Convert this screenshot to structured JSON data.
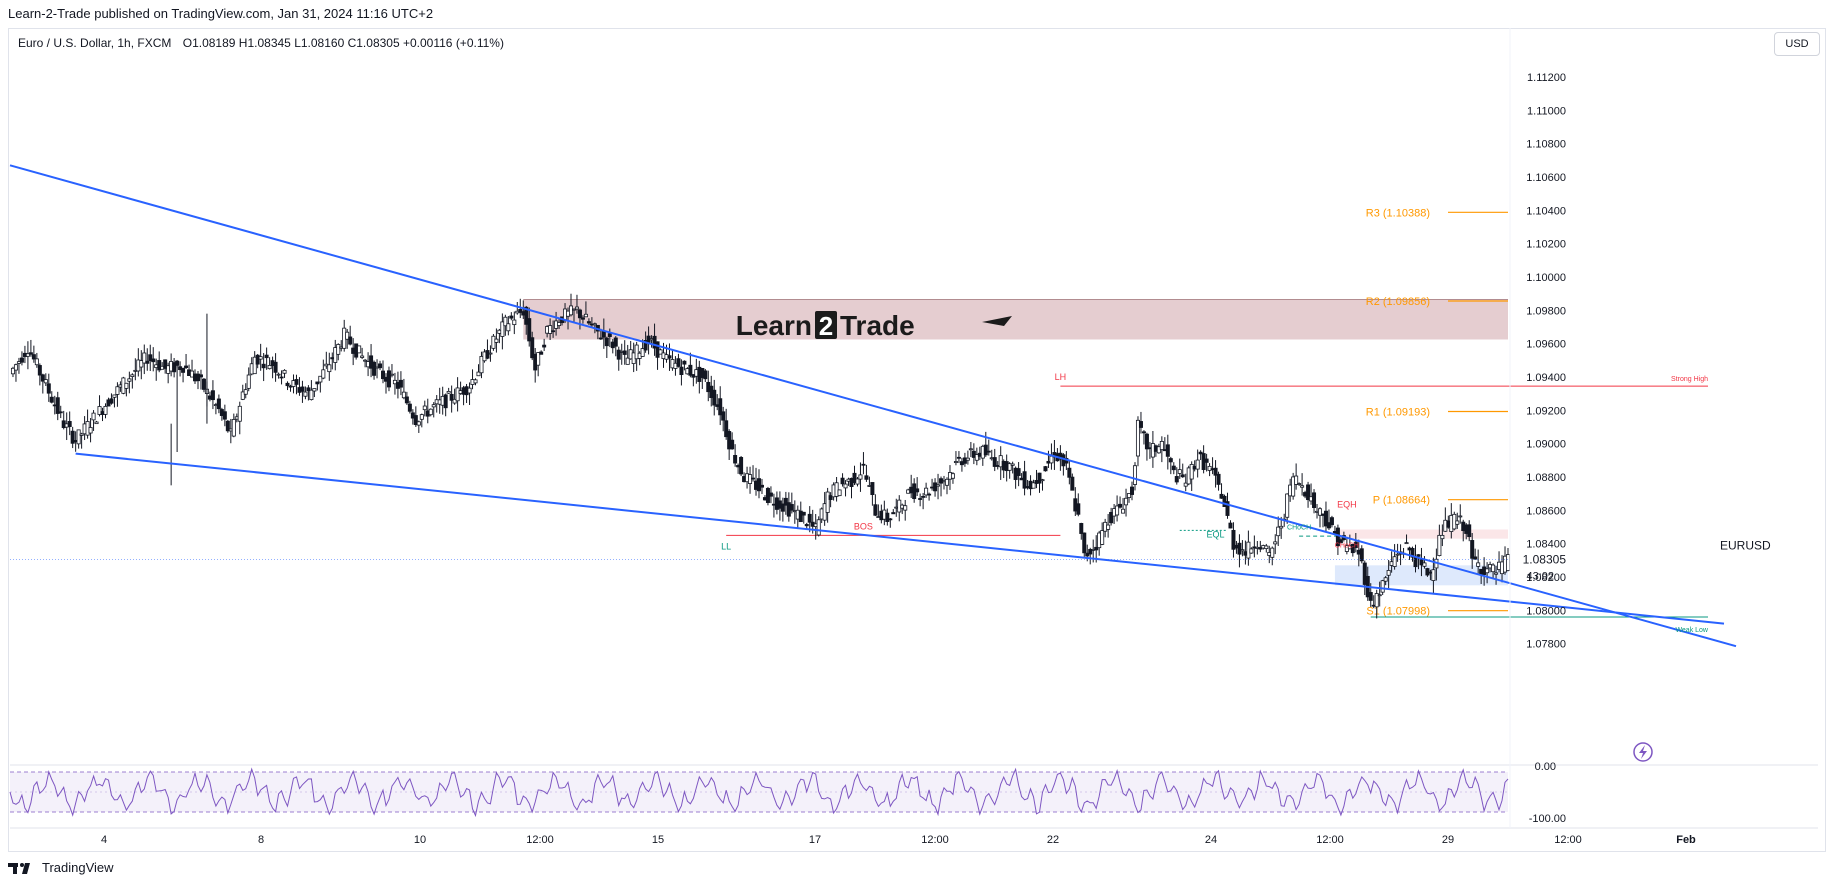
{
  "header": {
    "published_by": "Learn-2-Trade published on TradingView.com, Jan 31, 2024 11:16 UTC+2"
  },
  "symbol_bar": {
    "name": "Euro / U.S. Dollar, 1h, FXCM",
    "open": "O1.08189",
    "high": "H1.08345",
    "low": "L1.08160",
    "close": "C1.08305",
    "change": "+0.00116 (+0.11%)"
  },
  "currency_button": "USD",
  "watermark": {
    "text_left": "Learn",
    "text_digit": "2",
    "text_right": "Trade"
  },
  "footer": {
    "brand": "TradingView"
  },
  "colors": {
    "trendline": "#2962ff",
    "pivot": "#ff9800",
    "resistance_zone": "#dcbcc0",
    "demand_zone": "#d6e4fb",
    "bearish_marker": "#f23645",
    "bullish_marker": "#089981",
    "rsi": "#7e57c2"
  },
  "chart_data": {
    "type": "candlestick",
    "symbol": "EURUSD",
    "timeframe": "1h",
    "current_price": "1.08305",
    "countdown": "43:02",
    "y_ticks": [
      "1.11200",
      "1.11000",
      "1.10800",
      "1.10600",
      "1.10400",
      "1.10200",
      "1.10000",
      "1.09800",
      "1.09600",
      "1.09400",
      "1.09200",
      "1.09000",
      "1.08800",
      "1.08600",
      "1.08400",
      "1.08200",
      "1.08000",
      "1.07800"
    ],
    "ylim": [
      1.0775,
      1.1135
    ],
    "x_ticks": [
      "4",
      "8",
      "10",
      "12:00",
      "15",
      "17",
      "12:00",
      "22",
      "24",
      "12:00",
      "29",
      "12:00",
      "Feb"
    ],
    "price_path": [
      [
        0,
        1.0942
      ],
      [
        3,
        1.0958
      ],
      [
        6,
        1.0935
      ],
      [
        9,
        1.0912
      ],
      [
        11,
        1.0902
      ],
      [
        14,
        1.0915
      ],
      [
        17,
        1.0928
      ],
      [
        20,
        1.094
      ],
      [
        23,
        1.0952
      ],
      [
        26,
        1.0945
      ],
      [
        29,
        1.0947
      ],
      [
        32,
        1.0936
      ],
      [
        35,
        1.092
      ],
      [
        37,
        1.0905
      ],
      [
        39,
        1.093
      ],
      [
        41,
        1.0952
      ],
      [
        44,
        1.0948
      ],
      [
        47,
        1.0936
      ],
      [
        50,
        1.093
      ],
      [
        53,
        1.0945
      ],
      [
        56,
        1.0965
      ],
      [
        59,
        1.0952
      ],
      [
        62,
        1.0942
      ],
      [
        65,
        1.0935
      ],
      [
        68,
        1.0915
      ],
      [
        71,
        1.0922
      ],
      [
        74,
        1.0928
      ],
      [
        77,
        1.0935
      ],
      [
        80,
        1.0955
      ],
      [
        83,
        1.0972
      ],
      [
        86,
        1.098
      ],
      [
        88,
        1.0945
      ],
      [
        90,
        1.0968
      ],
      [
        92,
        1.0975
      ],
      [
        95,
        1.098
      ],
      [
        98,
        1.0968
      ],
      [
        101,
        1.096
      ],
      [
        103,
        1.095
      ],
      [
        105,
        1.0955
      ],
      [
        107,
        1.0962
      ],
      [
        110,
        1.095
      ],
      [
        113,
        1.0945
      ],
      [
        116,
        1.094
      ],
      [
        119,
        1.092
      ],
      [
        121,
        1.0895
      ],
      [
        123,
        1.088
      ],
      [
        125,
        1.0875
      ],
      [
        127,
        1.0868
      ],
      [
        130,
        1.0862
      ],
      [
        133,
        1.0855
      ],
      [
        135,
        1.0848
      ],
      [
        137,
        1.0868
      ],
      [
        139,
        1.0875
      ],
      [
        141,
        1.0878
      ],
      [
        143,
        1.0885
      ],
      [
        145,
        1.086
      ],
      [
        147,
        1.0855
      ],
      [
        149,
        1.0862
      ],
      [
        151,
        1.0872
      ],
      [
        153,
        1.087
      ],
      [
        155,
        1.0875
      ],
      [
        157,
        1.088
      ],
      [
        159,
        1.089
      ],
      [
        161,
        1.0893
      ],
      [
        163,
        1.0895
      ],
      [
        165,
        1.089
      ],
      [
        167,
        1.0888
      ],
      [
        169,
        1.088
      ],
      [
        171,
        1.0875
      ],
      [
        173,
        1.0882
      ],
      [
        175,
        1.0895
      ],
      [
        177,
        1.0885
      ],
      [
        179,
        1.0855
      ],
      [
        180,
        1.0832
      ],
      [
        182,
        1.084
      ],
      [
        184,
        1.0855
      ],
      [
        186,
        1.0862
      ],
      [
        188,
        1.0872
      ],
      [
        189,
        1.091
      ],
      [
        191,
        1.0895
      ],
      [
        193,
        1.09
      ],
      [
        195,
        1.0882
      ],
      [
        197,
        1.0878
      ],
      [
        199,
        1.0892
      ],
      [
        201,
        1.0885
      ],
      [
        203,
        1.087
      ],
      [
        205,
        1.084
      ],
      [
        207,
        1.0835
      ],
      [
        209,
        1.0842
      ],
      [
        211,
        1.0832
      ],
      [
        213,
        1.0852
      ],
      [
        215,
        1.088
      ],
      [
        217,
        1.0873
      ],
      [
        219,
        1.086
      ],
      [
        220,
        1.0858
      ],
      [
        222,
        1.0845
      ],
      [
        224,
        1.0838
      ],
      [
        226,
        1.0835
      ],
      [
        227,
        1.082
      ],
      [
        228,
        1.0803
      ],
      [
        230,
        1.0815
      ],
      [
        232,
        1.0832
      ],
      [
        234,
        1.0838
      ],
      [
        236,
        1.0828
      ],
      [
        238,
        1.0822
      ],
      [
        240,
        1.0848
      ],
      [
        242,
        1.0855
      ],
      [
        244,
        1.085
      ],
      [
        245,
        1.083
      ],
      [
        247,
        1.0825
      ],
      [
        249,
        1.0823
      ],
      [
        251,
        1.083
      ]
    ],
    "levels": [
      {
        "name": "R3",
        "label": "R3 (1.10388)",
        "value": 1.10388
      },
      {
        "name": "R2",
        "label": "R2 (1.09856)",
        "value": 1.09856
      },
      {
        "name": "R1",
        "label": "R1 (1.09193)",
        "value": 1.09193
      },
      {
        "name": "P",
        "label": "P (1.08664)",
        "value": 1.08664
      },
      {
        "name": "S1",
        "label": "S1 (1.07998)",
        "value": 1.07998
      }
    ],
    "resistance_zone": {
      "low": 1.09625,
      "high": 1.09865,
      "from": 86
    },
    "demand_zone": {
      "low": 1.0815,
      "high": 1.0827,
      "from": 222
    },
    "annotations": [
      {
        "text": "LH",
        "t": 176,
        "price": 1.09345,
        "color": "bear"
      },
      {
        "text": "Strong High",
        "t": 236,
        "price": 1.0934,
        "color": "bear"
      },
      {
        "text": "LL",
        "t": 120,
        "price": 1.0845,
        "color": "bull"
      },
      {
        "text": "BOS",
        "t": 143,
        "price": 1.0845,
        "color": "bear"
      },
      {
        "text": "CHoCH",
        "t": 216,
        "price": 1.0845,
        "color": "bull"
      },
      {
        "text": "EQH",
        "t": 224,
        "price": 1.0858,
        "color": "bear"
      },
      {
        "text": "EQL",
        "t": 202,
        "price": 1.084,
        "color": "bull"
      },
      {
        "text": "CHoCH",
        "t": 224,
        "price": 1.0834,
        "color": "bear"
      },
      {
        "text": "Weak Low",
        "t": 238,
        "price": 1.0793,
        "color": "bull"
      }
    ],
    "rsi": {
      "ticks": [
        "0.00",
        "-100.00"
      ]
    }
  }
}
